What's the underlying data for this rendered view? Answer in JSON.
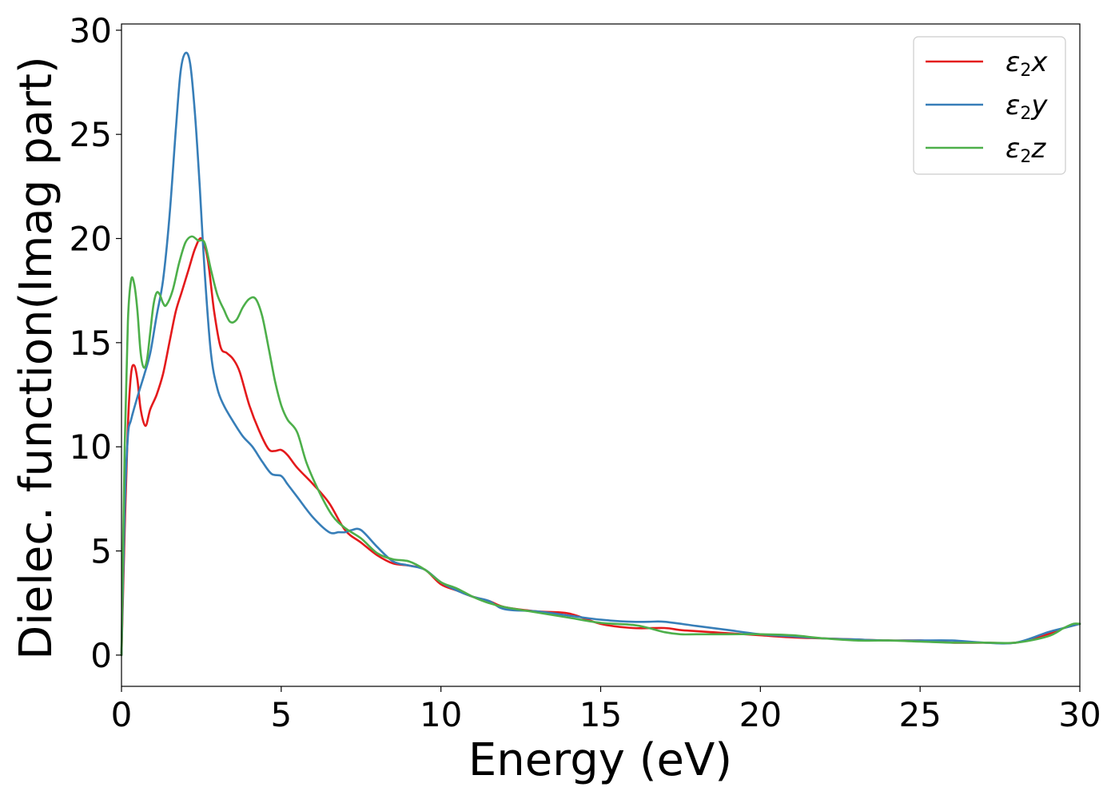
{
  "chart_data": {
    "type": "line",
    "title": "",
    "xlabel": "Energy (eV)",
    "ylabel": "Dielec. function(Imag part)",
    "xlim": [
      0,
      30
    ],
    "ylim": [
      -1.5,
      30.3
    ],
    "xticks": [
      0,
      5,
      10,
      15,
      20,
      25,
      30
    ],
    "yticks": [
      0,
      5,
      10,
      15,
      20,
      25,
      30
    ],
    "grid": false,
    "legend_position": "top-right",
    "series": [
      {
        "name": "ε2x",
        "legend": {
          "main": "ε",
          "sub": "2",
          "tail": "x"
        },
        "color": "#e41a1c",
        "x": [
          0,
          0.1,
          0.2,
          0.3,
          0.4,
          0.5,
          0.6,
          0.75,
          0.9,
          1.1,
          1.3,
          1.5,
          1.7,
          1.9,
          2.1,
          2.3,
          2.5,
          2.7,
          2.9,
          3.1,
          3.3,
          3.5,
          3.7,
          4.0,
          4.3,
          4.6,
          4.8,
          5.0,
          5.2,
          5.5,
          6.0,
          6.5,
          7.0,
          7.5,
          8.0,
          8.5,
          9.0,
          9.5,
          10.0,
          10.5,
          11.0,
          11.5,
          12.0,
          13.0,
          14.0,
          15.0,
          16.0,
          17.0,
          17.5,
          18.0,
          19.0,
          20.0,
          21.0,
          22.0,
          23.0,
          24.0,
          25.0,
          26.0,
          27.0,
          28.0,
          29.0,
          29.5,
          30.0
        ],
        "values": [
          0,
          6.0,
          11.0,
          13.5,
          13.9,
          13.2,
          11.8,
          11.0,
          11.8,
          12.5,
          13.5,
          15.0,
          16.5,
          17.5,
          18.5,
          19.5,
          20.0,
          19.0,
          16.5,
          14.8,
          14.5,
          14.2,
          13.6,
          12.0,
          10.8,
          9.9,
          9.8,
          9.85,
          9.6,
          9.0,
          8.2,
          7.3,
          6.0,
          5.4,
          4.8,
          4.4,
          4.3,
          4.1,
          3.4,
          3.1,
          2.8,
          2.6,
          2.3,
          2.1,
          2.0,
          1.5,
          1.3,
          1.3,
          1.2,
          1.15,
          1.05,
          0.95,
          0.85,
          0.8,
          0.75,
          0.7,
          0.7,
          0.6,
          0.6,
          0.6,
          1.0,
          1.3,
          1.5
        ]
      },
      {
        "name": "ε2y",
        "legend": {
          "main": "ε",
          "sub": "2",
          "tail": "y"
        },
        "color": "#377eb8",
        "x": [
          0,
          0.1,
          0.2,
          0.3,
          0.5,
          0.7,
          0.9,
          1.1,
          1.3,
          1.5,
          1.7,
          1.85,
          2.0,
          2.15,
          2.3,
          2.45,
          2.6,
          2.8,
          3.0,
          3.2,
          3.5,
          3.8,
          4.1,
          4.4,
          4.7,
          5.0,
          5.2,
          5.5,
          6.0,
          6.5,
          6.8,
          7.0,
          7.2,
          7.5,
          8.0,
          8.5,
          9.0,
          9.5,
          10.0,
          10.5,
          11.0,
          11.5,
          12.0,
          13.0,
          14.0,
          15.0,
          16.0,
          16.5,
          17.0,
          18.0,
          19.0,
          20.0,
          21.0,
          22.0,
          23.0,
          24.0,
          25.0,
          26.0,
          27.0,
          28.0,
          29.0,
          29.5,
          30.0
        ],
        "values": [
          0,
          7.0,
          10.5,
          11.3,
          12.4,
          13.4,
          14.5,
          16.3,
          18.0,
          21.0,
          25.2,
          28.0,
          28.9,
          28.4,
          26.0,
          22.5,
          18.5,
          14.5,
          12.8,
          12.0,
          11.2,
          10.5,
          10.0,
          9.3,
          8.7,
          8.6,
          8.2,
          7.6,
          6.6,
          5.9,
          5.9,
          5.9,
          6.0,
          6.0,
          5.2,
          4.5,
          4.3,
          4.1,
          3.5,
          3.1,
          2.8,
          2.6,
          2.2,
          2.1,
          1.9,
          1.7,
          1.6,
          1.6,
          1.6,
          1.4,
          1.2,
          1.0,
          0.9,
          0.8,
          0.75,
          0.7,
          0.7,
          0.7,
          0.6,
          0.6,
          1.1,
          1.3,
          1.5
        ]
      },
      {
        "name": "ε2z",
        "legend": {
          "main": "ε",
          "sub": "2",
          "tail": "z"
        },
        "color": "#4daf4a",
        "x": [
          0,
          0.1,
          0.2,
          0.3,
          0.4,
          0.5,
          0.6,
          0.7,
          0.8,
          0.9,
          1.0,
          1.1,
          1.2,
          1.3,
          1.4,
          1.6,
          1.8,
          2.0,
          2.2,
          2.4,
          2.6,
          2.8,
          3.0,
          3.2,
          3.4,
          3.6,
          3.8,
          4.0,
          4.2,
          4.4,
          4.6,
          4.8,
          5.0,
          5.2,
          5.5,
          5.8,
          6.2,
          6.6,
          7.0,
          7.5,
          8.0,
          8.5,
          9.0,
          9.5,
          10.0,
          10.5,
          11.0,
          11.5,
          12.0,
          13.0,
          14.0,
          15.0,
          16.0,
          16.5,
          17.0,
          17.5,
          18.0,
          19.0,
          20.0,
          21.0,
          22.0,
          23.0,
          24.0,
          25.0,
          26.0,
          27.0,
          28.0,
          29.0,
          29.5,
          29.8,
          30.0
        ],
        "values": [
          0,
          10.0,
          16.0,
          18.0,
          17.8,
          16.5,
          14.5,
          13.8,
          14.2,
          15.5,
          16.8,
          17.4,
          17.3,
          16.9,
          16.8,
          17.5,
          18.8,
          19.8,
          20.1,
          19.9,
          19.8,
          18.5,
          17.3,
          16.6,
          16.0,
          16.1,
          16.7,
          17.1,
          17.1,
          16.3,
          14.8,
          13.2,
          12.0,
          11.3,
          10.7,
          9.2,
          7.8,
          6.7,
          6.1,
          5.6,
          4.9,
          4.6,
          4.5,
          4.1,
          3.5,
          3.2,
          2.8,
          2.5,
          2.3,
          2.05,
          1.8,
          1.55,
          1.45,
          1.3,
          1.1,
          1.0,
          1.0,
          1.0,
          1.0,
          0.95,
          0.8,
          0.7,
          0.7,
          0.65,
          0.6,
          0.6,
          0.6,
          0.9,
          1.3,
          1.5,
          1.5
        ]
      }
    ]
  }
}
